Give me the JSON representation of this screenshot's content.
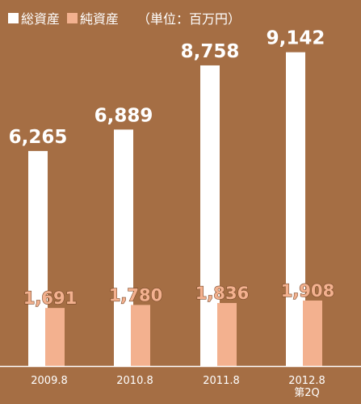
{
  "legend": {
    "total_label": "総資産",
    "net_label": "純資産",
    "unit_label": "（単位：百万円）"
  },
  "colors": {
    "background": "#a56e44",
    "total": "#ffffff",
    "net": "#f3b18f",
    "axis": "#ffffff",
    "net_label_fill": "#f3b18f",
    "net_label_stroke": "#7a4a2a",
    "category_text": "#ffffff"
  },
  "chart_data": {
    "type": "bar",
    "categories": [
      "2009.8",
      "2010.8",
      "2011.8",
      "2012.8\n第2Q"
    ],
    "series": [
      {
        "name": "総資産",
        "values": [
          6265,
          6889,
          8758,
          9142
        ]
      },
      {
        "name": "純資産",
        "values": [
          1691,
          1780,
          1836,
          1908
        ]
      }
    ],
    "value_labels": {
      "total": [
        "6,265",
        "6,889",
        "8,758",
        "9,142"
      ],
      "net": [
        "1,691",
        "1,780",
        "1,836",
        "1,908"
      ]
    },
    "ylim": [
      0,
      10200
    ],
    "unit": "（単位：百万円）",
    "grid": false,
    "legend_position": "top-left"
  }
}
